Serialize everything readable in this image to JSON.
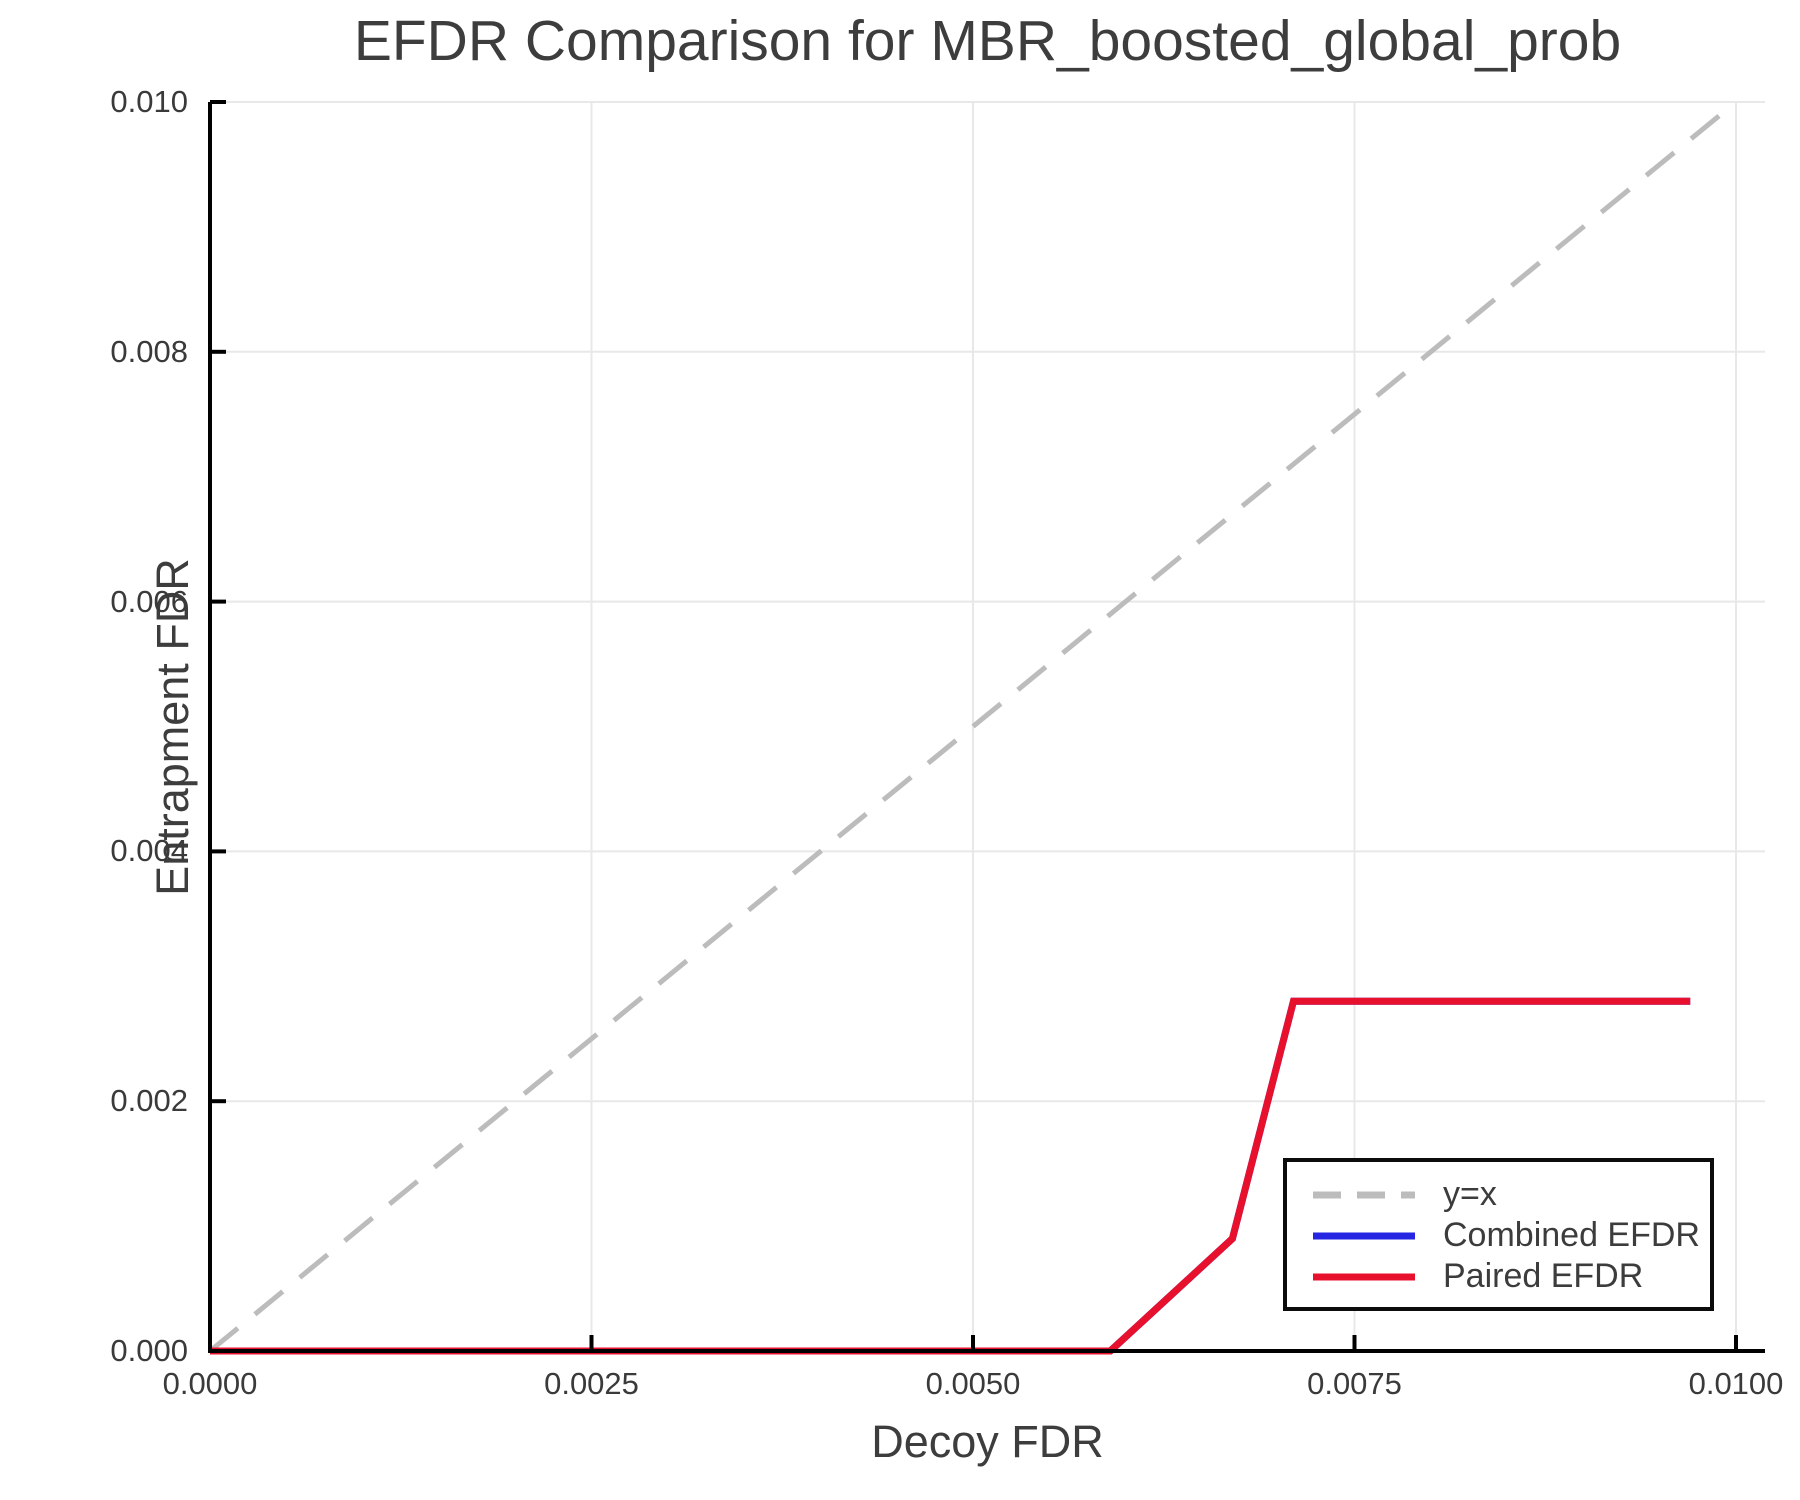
{
  "chart_data": {
    "type": "line",
    "title": "EFDR Comparison for MBR_boosted_global_prob",
    "xlabel": "Decoy FDR",
    "ylabel": "Entrapment FDR",
    "xlim": [
      0.0,
      0.01019
    ],
    "ylim": [
      0.0,
      0.01
    ],
    "grid": true,
    "background_color": "#ffffff",
    "grid_color": "#e8e8e8",
    "spine_color": "#000000",
    "text_color": "#3a3a3a",
    "x_ticks": {
      "values": [
        0.0,
        0.0025,
        0.005,
        0.0075,
        0.01
      ],
      "labels": [
        "0.0000",
        "0.0025",
        "0.0050",
        "0.0075",
        "0.0100"
      ]
    },
    "y_ticks": {
      "values": [
        0.0,
        0.002,
        0.004,
        0.006,
        0.008,
        0.01
      ],
      "labels": [
        "0.000",
        "0.002",
        "0.004",
        "0.006",
        "0.008",
        "0.010"
      ]
    },
    "legend_position": "lower right",
    "series": [
      {
        "name": "y=x",
        "line_style": "dashed",
        "color": "#bcbcbc",
        "width": 5,
        "points": [
          [
            0.0,
            0.0
          ],
          [
            0.01,
            0.01
          ]
        ]
      },
      {
        "name": "Combined EFDR",
        "line_style": "solid",
        "color": "#2525e2",
        "width": 7,
        "points": [
          [
            0.0,
            0.0
          ],
          [
            0.0059,
            0.0
          ],
          [
            0.0067,
            0.0009
          ],
          [
            0.0071,
            0.0028
          ],
          [
            0.0097,
            0.0028
          ]
        ]
      },
      {
        "name": "Paired EFDR",
        "line_style": "solid",
        "color": "#e8112d",
        "width": 7,
        "points": [
          [
            0.0,
            0.0
          ],
          [
            0.0059,
            0.0
          ],
          [
            0.0067,
            0.0009
          ],
          [
            0.0071,
            0.0028
          ],
          [
            0.0097,
            0.0028
          ]
        ]
      }
    ]
  }
}
